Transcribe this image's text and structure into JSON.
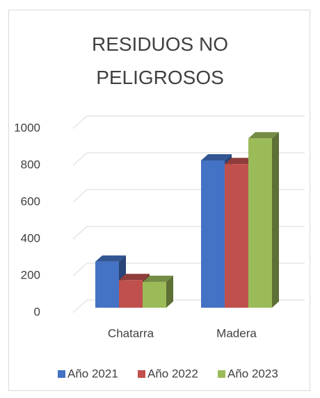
{
  "chart_data": {
    "type": "bar3d",
    "title": "RESIDUOS NO PELIGROSOS",
    "categories": [
      "Chatarra",
      "Madera"
    ],
    "series": [
      {
        "name": "Año 2021",
        "color": "#4472c4",
        "values": [
          250,
          800
        ]
      },
      {
        "name": "Año 2022",
        "color": "#c0504d",
        "values": [
          150,
          780
        ]
      },
      {
        "name": "Año 2023",
        "color": "#9bbb59",
        "values": [
          140,
          920
        ]
      }
    ],
    "ylim": [
      0,
      1000
    ],
    "yticks": [
      0,
      200,
      400,
      600,
      800,
      1000
    ],
    "grid": true,
    "legend": "bottom"
  }
}
